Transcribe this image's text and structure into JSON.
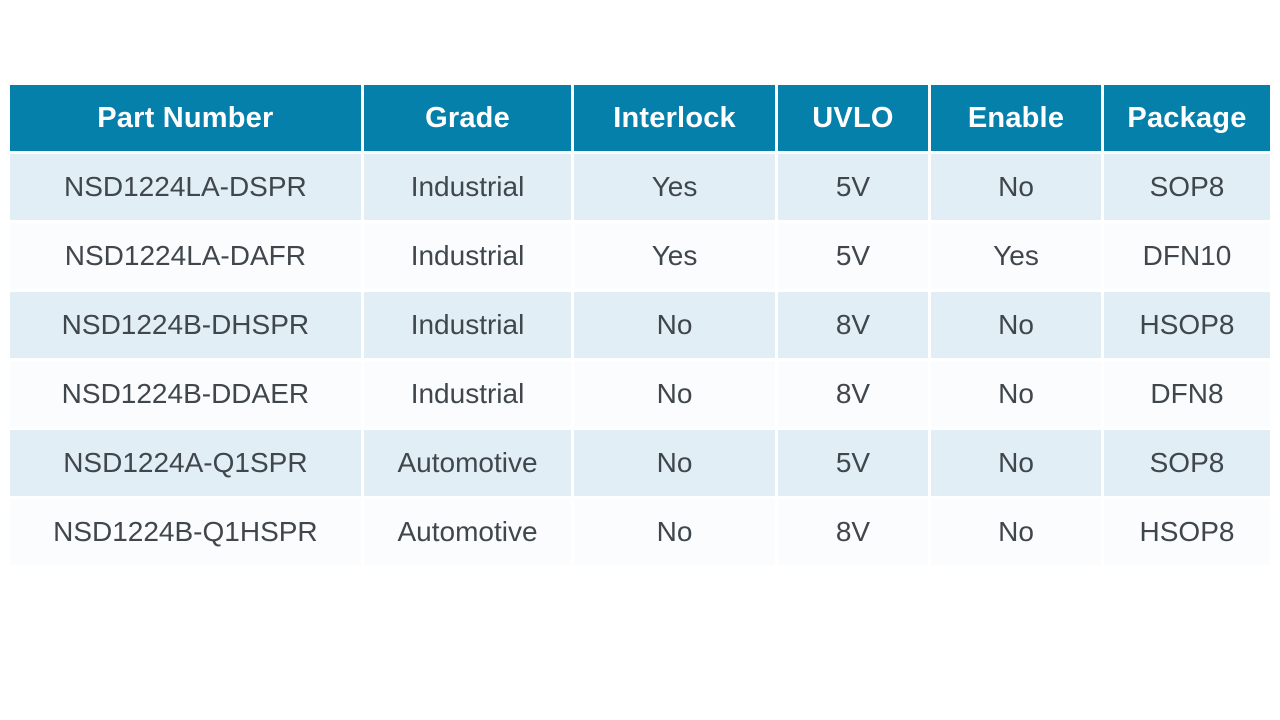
{
  "table": {
    "columns": [
      "Part Number",
      "Grade",
      "Interlock",
      "UVLO",
      "Enable",
      "Package"
    ],
    "rows": [
      [
        "NSD1224LA-DSPR",
        "Industrial",
        "Yes",
        "5V",
        "No",
        "SOP8"
      ],
      [
        "NSD1224LA-DAFR",
        "Industrial",
        "Yes",
        "5V",
        "Yes",
        "DFN10"
      ],
      [
        "NSD1224B-DHSPR",
        "Industrial",
        "No",
        "8V",
        "No",
        "HSOP8"
      ],
      [
        "NSD1224B-DDAER",
        "Industrial",
        "No",
        "8V",
        "No",
        "DFN8"
      ],
      [
        "NSD1224A-Q1SPR",
        "Automotive",
        "No",
        "5V",
        "No",
        "SOP8"
      ],
      [
        "NSD1224B-Q1HSPR",
        "Automotive",
        "No",
        "8V",
        "No",
        "HSOP8"
      ]
    ]
  },
  "colors": {
    "header_bg": "#0580ab",
    "header_text": "#ffffff",
    "row_odd_bg": "#e2eef5",
    "row_even_bg": "#fafcfd",
    "body_text": "#40474c",
    "page_bg": "#ffffff"
  }
}
